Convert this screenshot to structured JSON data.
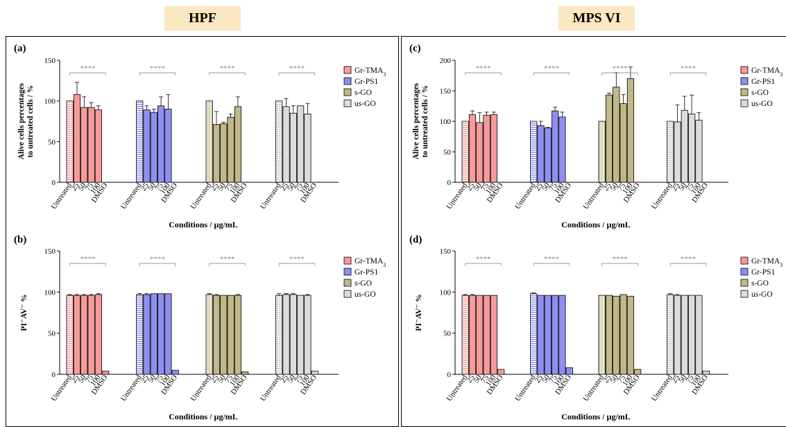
{
  "headers": {
    "left": "HPF",
    "right": "MPS VI"
  },
  "colors": {
    "Gr-TMA3": "#f79a9a",
    "Gr-PS1": "#8f8ff0",
    "s-GO": "#c0b888",
    "us-GO": "#dcdcdc",
    "header_bg": "#fbe7c1"
  },
  "chart_data": [
    {
      "id": "a",
      "panel_label": "(a)",
      "type": "bar",
      "ylabel": [
        "Alive cells percentages",
        "to untreated cells / %"
      ],
      "xlabel": "Conditions / µg/mL",
      "ylim": [
        0,
        150
      ],
      "yticks": [
        0,
        50,
        100,
        150
      ],
      "categories": [
        "Untreated",
        "25",
        "50",
        "75",
        "100",
        "DMSO"
      ],
      "significance": "****",
      "legend": [
        {
          "label": "Gr-TMA",
          "sub": "3"
        },
        {
          "label": "Gr-PS1",
          "sub": ""
        },
        {
          "label": "s-GO",
          "sub": ""
        },
        {
          "label": "us-GO",
          "sub": ""
        }
      ],
      "series": [
        {
          "key": "Gr-TMA3",
          "values": [
            100,
            108,
            92,
            92,
            89,
            0
          ],
          "errors": [
            0,
            15,
            13,
            6,
            5,
            0
          ]
        },
        {
          "key": "Gr-PS1",
          "values": [
            100,
            89,
            86,
            94,
            90,
            0
          ],
          "errors": [
            0,
            5,
            4,
            11,
            18,
            0
          ]
        },
        {
          "key": "s-GO",
          "values": [
            100,
            71,
            72,
            80,
            93,
            0
          ],
          "errors": [
            0,
            16,
            2,
            4,
            12,
            0
          ]
        },
        {
          "key": "us-GO",
          "values": [
            100,
            93,
            85,
            94,
            84,
            0
          ],
          "errors": [
            0,
            10,
            9,
            0,
            13,
            0
          ]
        }
      ]
    },
    {
      "id": "b",
      "panel_label": "(b)",
      "type": "bar",
      "ylabel": [
        "PI⁻AV⁻ %"
      ],
      "xlabel": "Conditions / µg/mL",
      "ylim": [
        0,
        150
      ],
      "yticks": [
        0,
        50,
        100,
        150
      ],
      "categories": [
        "Untreated",
        "25",
        "50",
        "75",
        "100",
        "DMSO"
      ],
      "significance": "****",
      "legend": [
        {
          "label": "Gr-TMA",
          "sub": "3"
        },
        {
          "label": "Gr-PS1",
          "sub": ""
        },
        {
          "label": "s-GO",
          "sub": ""
        },
        {
          "label": "us-GO",
          "sub": ""
        }
      ],
      "series": [
        {
          "key": "Gr-TMA3",
          "values": [
            96,
            96,
            96,
            96,
            97,
            4
          ],
          "errors": [
            1,
            1,
            1,
            1,
            1,
            0
          ]
        },
        {
          "key": "Gr-PS1",
          "values": [
            97,
            97,
            98,
            98,
            98,
            5
          ],
          "errors": [
            1,
            1,
            0,
            0,
            0,
            0
          ]
        },
        {
          "key": "s-GO",
          "values": [
            97,
            96,
            96,
            96,
            96,
            3
          ],
          "errors": [
            1,
            1,
            0,
            0,
            1,
            0
          ]
        },
        {
          "key": "us-GO",
          "values": [
            96,
            97,
            97,
            96,
            96,
            4
          ],
          "errors": [
            2,
            1,
            1,
            0,
            1,
            0
          ]
        }
      ]
    },
    {
      "id": "c",
      "panel_label": "(c)",
      "type": "bar",
      "ylabel": [
        "Alive cells percentages",
        "to untreated cells / %"
      ],
      "xlabel": "Conditions / µg/mL",
      "ylim": [
        0,
        200
      ],
      "yticks": [
        0,
        50,
        100,
        150,
        200
      ],
      "categories": [
        "Untreated",
        "25",
        "50",
        "75",
        "100",
        "DMSO"
      ],
      "significance": "****",
      "legend": [
        {
          "label": "Gr-TMA",
          "sub": "3"
        },
        {
          "label": "Gr-PS1",
          "sub": ""
        },
        {
          "label": "s-GO",
          "sub": ""
        },
        {
          "label": "us-GO",
          "sub": ""
        }
      ],
      "series": [
        {
          "key": "Gr-TMA3",
          "values": [
            100,
            111,
            98,
            110,
            111,
            0
          ],
          "errors": [
            0,
            6,
            16,
            5,
            4,
            0
          ]
        },
        {
          "key": "Gr-PS1",
          "values": [
            100,
            93,
            89,
            117,
            107,
            0
          ],
          "errors": [
            0,
            7,
            1,
            6,
            8,
            0
          ]
        },
        {
          "key": "s-GO",
          "values": [
            100,
            143,
            156,
            129,
            170,
            0
          ],
          "errors": [
            0,
            3,
            24,
            15,
            19,
            0
          ]
        },
        {
          "key": "us-GO",
          "values": [
            100,
            99,
            118,
            112,
            102,
            0
          ],
          "errors": [
            0,
            28,
            23,
            31,
            12,
            0
          ]
        }
      ]
    },
    {
      "id": "d",
      "panel_label": "(d)",
      "type": "bar",
      "ylabel": [
        "PI⁻AV⁻ %"
      ],
      "xlabel": "Conditions / µg/mL",
      "ylim": [
        0,
        150
      ],
      "yticks": [
        0,
        50,
        100,
        150
      ],
      "categories": [
        "Untreated",
        "25",
        "50",
        "75",
        "100",
        "DMSO"
      ],
      "significance": "****",
      "legend": [
        {
          "label": "Gr-TMA",
          "sub": "3"
        },
        {
          "label": "Gr-PS1",
          "sub": ""
        },
        {
          "label": "s-GO",
          "sub": ""
        },
        {
          "label": "us-GO",
          "sub": ""
        }
      ],
      "series": [
        {
          "key": "Gr-TMA3",
          "values": [
            96,
            96,
            96,
            96,
            96,
            6
          ],
          "errors": [
            1,
            1,
            0,
            0,
            0,
            0
          ]
        },
        {
          "key": "Gr-PS1",
          "values": [
            98,
            96,
            96,
            96,
            96,
            8
          ],
          "errors": [
            1,
            0,
            0,
            0,
            0,
            0
          ]
        },
        {
          "key": "s-GO",
          "values": [
            96,
            96,
            95,
            97,
            95,
            6
          ],
          "errors": [
            0,
            0,
            0,
            0,
            0,
            0
          ]
        },
        {
          "key": "us-GO",
          "values": [
            97,
            96,
            96,
            96,
            96,
            4
          ],
          "errors": [
            1,
            1,
            0,
            0,
            0,
            0
          ]
        }
      ]
    }
  ]
}
